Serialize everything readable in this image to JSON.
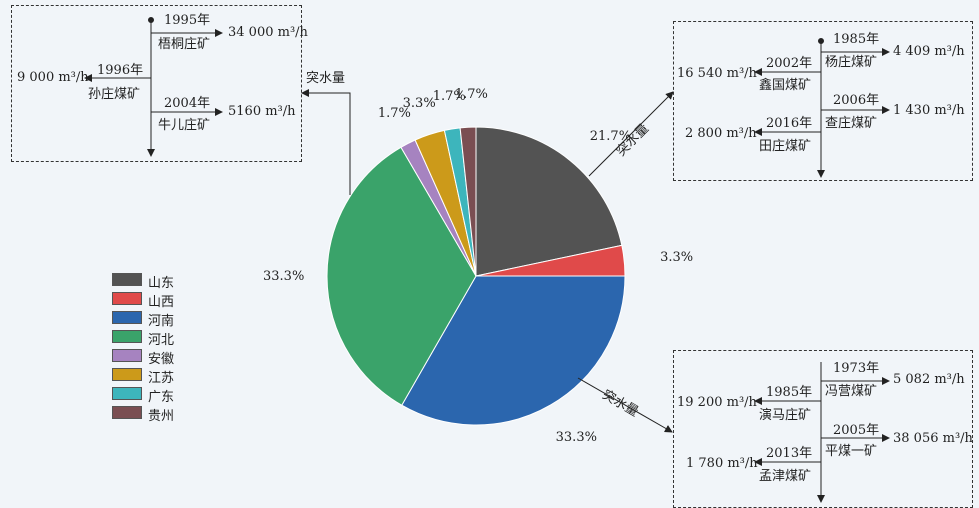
{
  "chart_data": {
    "type": "pie",
    "categories": [
      "山东",
      "山西",
      "河南",
      "河北",
      "安徽",
      "江苏",
      "广东",
      "贵州"
    ],
    "values": [
      21.7,
      3.3,
      33.3,
      33.3,
      1.7,
      3.3,
      1.7,
      1.7
    ],
    "value_labels": [
      "21.7%",
      "3.3%",
      "33.3%",
      "33.3%",
      "1.7%",
      "3.3%",
      "1.7%",
      "1.7%"
    ],
    "colors": [
      "#535353",
      "#e04a4a",
      "#2b66ae",
      "#3aa36a",
      "#a683c0",
      "#cc9a1a",
      "#3db5bc",
      "#7a4e52"
    ],
    "legend_position": "left"
  },
  "callouts": {
    "left": {
      "arrow_label": "突水量",
      "entries": [
        {
          "year": "1995年",
          "mine": "梧桐庄矿",
          "value": "34 000 m³/h"
        },
        {
          "year": "1996年",
          "mine": "孙庄煤矿",
          "value": "9 000 m³/h"
        },
        {
          "year": "2004年",
          "mine": "牛儿庄矿",
          "value": "5160 m³/h"
        }
      ]
    },
    "top_right": {
      "arrow_label": "突水量",
      "entries": [
        {
          "year": "1985年",
          "mine": "杨庄煤矿",
          "value": "4 409 m³/h"
        },
        {
          "year": "2002年",
          "mine": "鑫国煤矿",
          "value": "16 540 m³/h"
        },
        {
          "year": "2006年",
          "mine": "查庄煤矿",
          "value": "1 430 m³/h"
        },
        {
          "year": "2016年",
          "mine": "田庄煤矿",
          "value": "2 800 m³/h"
        }
      ]
    },
    "bottom_right": {
      "arrow_label": "突水量",
      "entries": [
        {
          "year": "1973年",
          "mine": "冯营煤矿",
          "value": "5 082 m³/h"
        },
        {
          "year": "1985年",
          "mine": "演马庄矿",
          "value": "19 200 m³/h"
        },
        {
          "year": "2005年",
          "mine": "平煤一矿",
          "value": "38 056 m³/h"
        },
        {
          "year": "2013年",
          "mine": "孟津煤矿",
          "value": "1 780 m³/h"
        }
      ]
    }
  }
}
